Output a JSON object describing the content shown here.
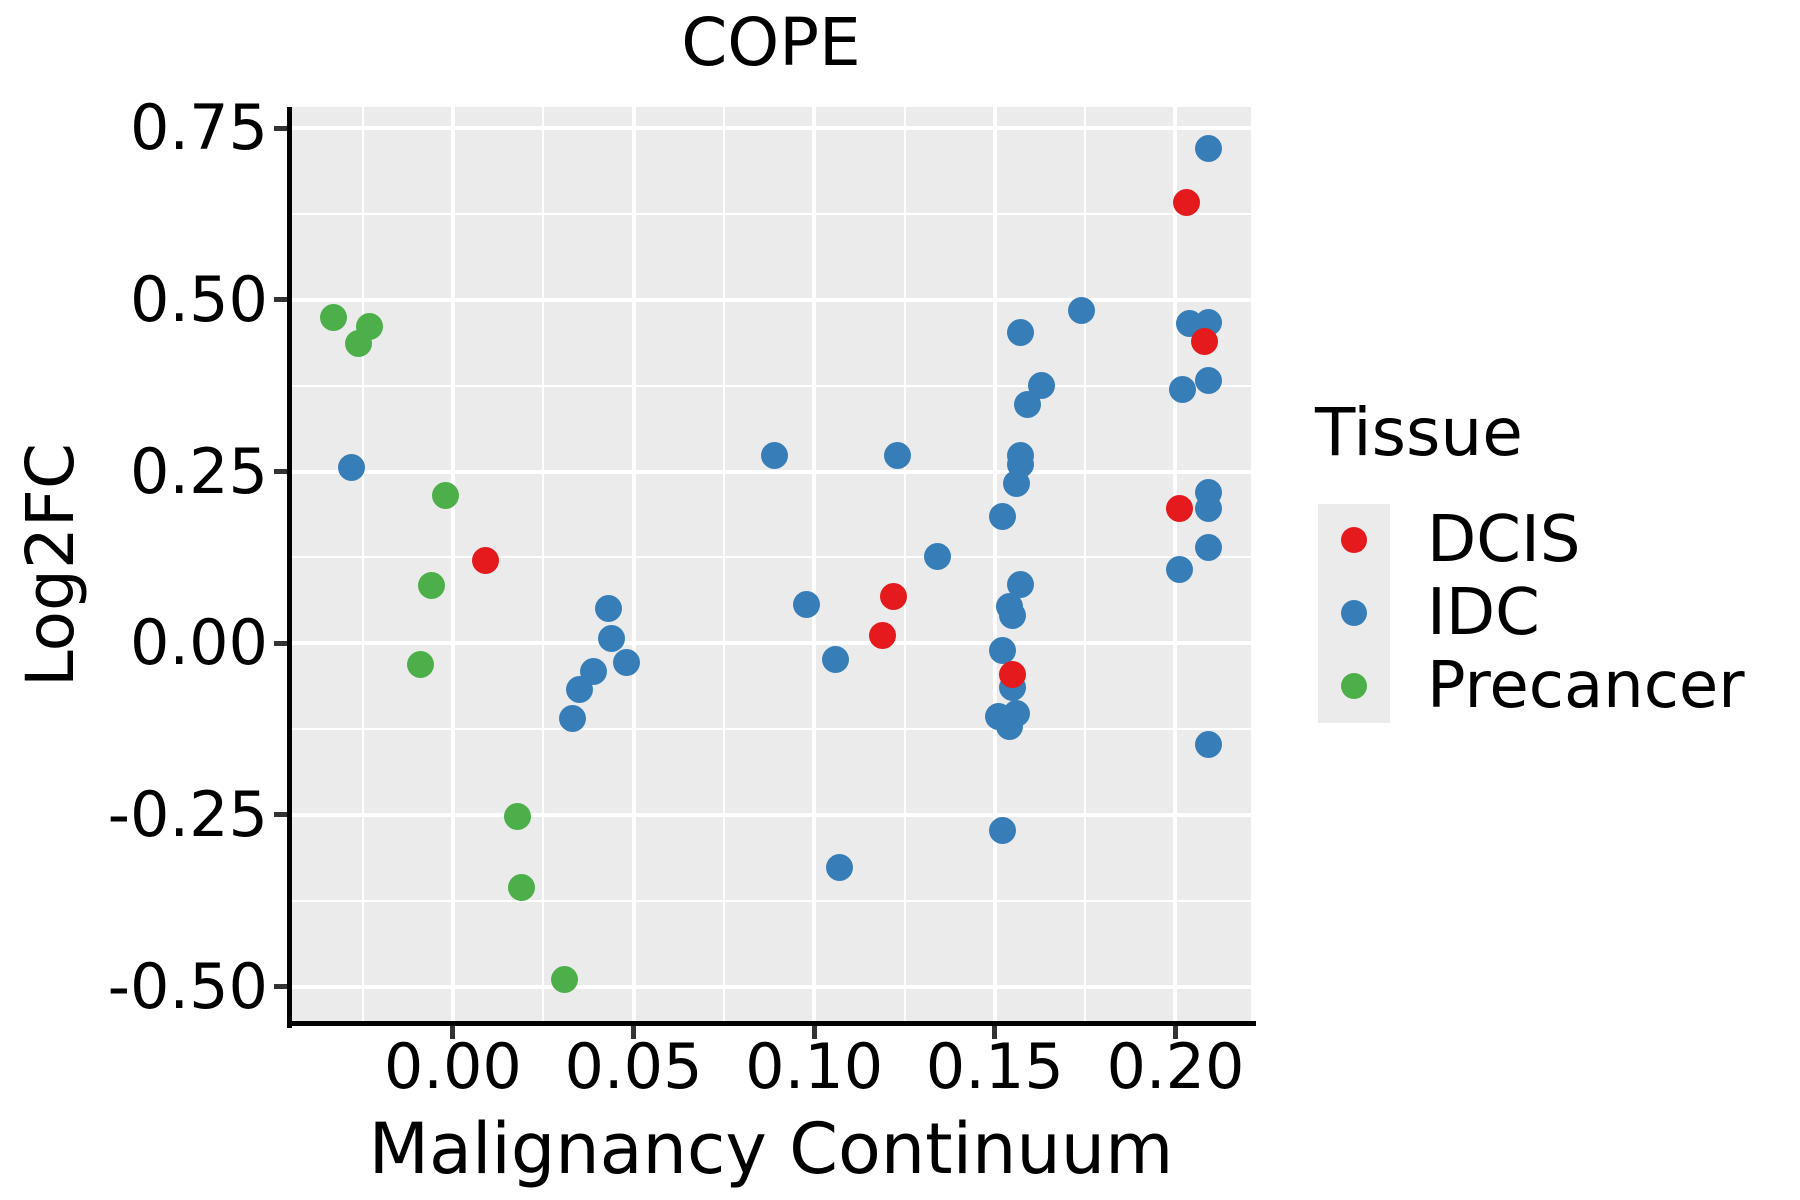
{
  "title": "COPE",
  "legend": {
    "title": "Tissue",
    "items": [
      {
        "label": "DCIS",
        "color": "#E41A1C"
      },
      {
        "label": "IDC",
        "color": "#377EB8"
      },
      {
        "label": "Precancer",
        "color": "#4DAF4A"
      }
    ]
  },
  "style": {
    "panel_bg": "#EBEBEB",
    "grid_color": "#FFFFFF",
    "spine_color": "#000000",
    "tick_color": "#333333",
    "point_diameter": 27
  },
  "chart_data": {
    "type": "scatter",
    "title": "COPE",
    "xlabel": "Malignancy Continuum",
    "ylabel": "Log2FC",
    "xlim": [
      -0.0448,
      0.2209
    ],
    "ylim": [
      -0.553,
      0.781
    ],
    "grid": true,
    "legend_position": "right",
    "x_major_ticks": [
      0.0,
      0.05,
      0.1,
      0.15,
      0.2
    ],
    "x_tick_labels": [
      "0.00",
      "0.05",
      "0.10",
      "0.15",
      "0.20"
    ],
    "x_minor_ticks": [
      -0.025,
      0.025,
      0.075,
      0.125,
      0.175
    ],
    "y_major_ticks": [
      0.75,
      0.5,
      0.25,
      0.0,
      -0.25,
      -0.5
    ],
    "y_tick_labels": [
      "0.75",
      "0.50",
      "0.25",
      "0.00",
      "-0.25",
      "-0.50"
    ],
    "y_minor_ticks": [
      0.625,
      0.375,
      0.125,
      -0.125,
      -0.375
    ],
    "series": [
      {
        "name": "IDC",
        "color": "#377EB8",
        "points": [
          [
            -0.028,
            0.256
          ],
          [
            0.033,
            -0.11
          ],
          [
            0.035,
            -0.068
          ],
          [
            0.039,
            -0.041
          ],
          [
            0.043,
            0.05
          ],
          [
            0.044,
            0.007
          ],
          [
            0.048,
            -0.028
          ],
          [
            0.089,
            0.274
          ],
          [
            0.098,
            0.056
          ],
          [
            0.106,
            -0.024
          ],
          [
            0.107,
            -0.326
          ],
          [
            0.123,
            0.273
          ],
          [
            0.134,
            0.126
          ],
          [
            0.151,
            -0.107
          ],
          [
            0.152,
            0.185
          ],
          [
            0.152,
            -0.01
          ],
          [
            0.152,
            -0.273
          ],
          [
            0.154,
            0.053
          ],
          [
            0.154,
            -0.121
          ],
          [
            0.155,
            0.041
          ],
          [
            0.155,
            -0.065
          ],
          [
            0.156,
            0.233
          ],
          [
            0.156,
            -0.102
          ],
          [
            0.157,
            0.452
          ],
          [
            0.157,
            0.274
          ],
          [
            0.157,
            0.26
          ],
          [
            0.157,
            0.086
          ],
          [
            0.159,
            0.348
          ],
          [
            0.163,
            0.375
          ],
          [
            0.174,
            0.484
          ],
          [
            0.201,
            0.108
          ],
          [
            0.202,
            0.369
          ],
          [
            0.204,
            0.465
          ],
          [
            0.209,
            0.72
          ],
          [
            0.209,
            0.467
          ],
          [
            0.209,
            0.382
          ],
          [
            0.209,
            0.219
          ],
          [
            0.209,
            0.197
          ],
          [
            0.209,
            0.14
          ],
          [
            0.209,
            -0.148
          ]
        ]
      },
      {
        "name": "Precancer",
        "color": "#4DAF4A",
        "points": [
          [
            -0.033,
            0.474
          ],
          [
            -0.026,
            0.436
          ],
          [
            -0.023,
            0.462
          ],
          [
            -0.009,
            -0.031
          ],
          [
            -0.006,
            0.084
          ],
          [
            -0.002,
            0.215
          ],
          [
            0.018,
            -0.252
          ],
          [
            0.019,
            -0.356
          ],
          [
            0.031,
            -0.49
          ]
        ]
      },
      {
        "name": "DCIS",
        "color": "#E41A1C",
        "points": [
          [
            0.009,
            0.121
          ],
          [
            0.119,
            0.012
          ],
          [
            0.122,
            0.068
          ],
          [
            0.155,
            -0.045
          ],
          [
            0.201,
            0.197
          ],
          [
            0.203,
            0.642
          ],
          [
            0.208,
            0.44
          ]
        ]
      }
    ]
  }
}
